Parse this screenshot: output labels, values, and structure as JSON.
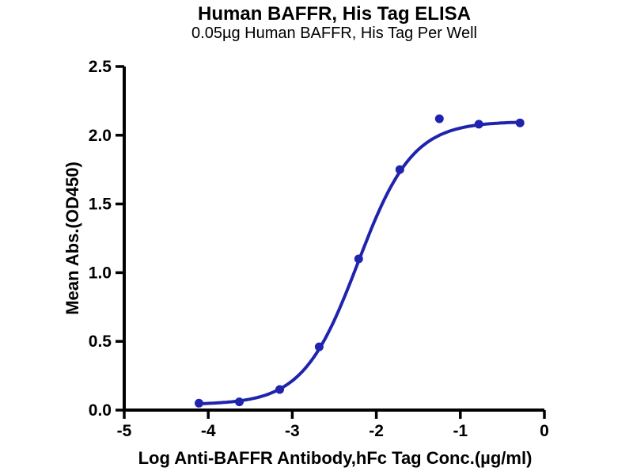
{
  "header": {
    "title": "Human BAFFR, His Tag ELISA",
    "subtitle": "0.05µg Human BAFFR, His Tag Per Well"
  },
  "chart_data": {
    "type": "scatter",
    "title": "Human BAFFR, His Tag ELISA",
    "subtitle": "0.05µg Human BAFFR, His Tag Per Well",
    "xlabel": "Log Anti-BAFFR Antibody,hFc Tag Conc.(µg/ml)",
    "ylabel": "Mean Abs.(OD450)",
    "xlim": [
      -5,
      0
    ],
    "ylim": [
      0,
      2.5
    ],
    "x_ticks": [
      -5,
      -4,
      -3,
      -2,
      -1,
      0
    ],
    "y_ticks": [
      0,
      0.5,
      1,
      1.5,
      2,
      2.5
    ],
    "y_tick_decimals": 1,
    "grid": false,
    "legend": "none",
    "colors": {
      "curve": "#1f23ad",
      "marker": "#1f23ad",
      "axis": "#000000",
      "text": "#000000",
      "background": "#ffffff"
    },
    "points": [
      {
        "x": -4.11,
        "y": 0.05
      },
      {
        "x": -3.63,
        "y": 0.06
      },
      {
        "x": -3.15,
        "y": 0.15
      },
      {
        "x": -2.68,
        "y": 0.46
      },
      {
        "x": -2.21,
        "y": 1.1
      },
      {
        "x": -1.72,
        "y": 1.75
      },
      {
        "x": -1.25,
        "y": 2.12
      },
      {
        "x": -0.78,
        "y": 2.08
      },
      {
        "x": -0.29,
        "y": 2.09
      }
    ],
    "fit_curve": {
      "model": "4PL",
      "bottom": 0.04,
      "top": 2.1,
      "log_ec50": -2.22,
      "hill_slope": 1.33,
      "x_start": -4.11,
      "x_end": -0.29
    }
  }
}
